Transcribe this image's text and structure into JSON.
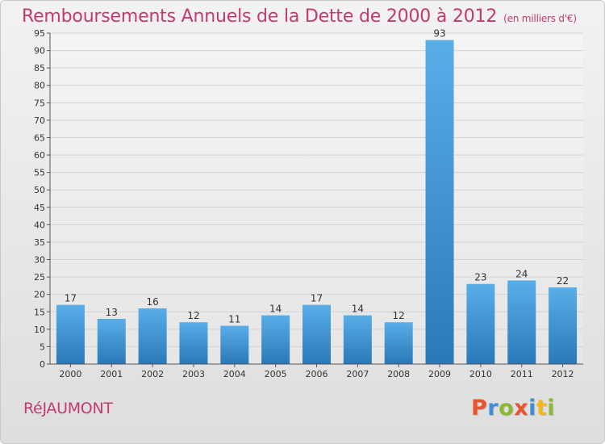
{
  "header": {
    "title": "Remboursements Annuels de la Dette de 2000 à 2012",
    "subtitle": "(en milliers d'€)"
  },
  "commune": "RéJAUMONT",
  "logo": {
    "letters": [
      {
        "char": "P",
        "color": "#e8542f"
      },
      {
        "char": "r",
        "color": "#3f8fd2"
      },
      {
        "char": "o",
        "color": "#8ab934"
      },
      {
        "char": "x",
        "color": "#e8542f"
      },
      {
        "char": "i",
        "color": "#3f8fd2"
      },
      {
        "char": "t",
        "color": "#f2b81e"
      },
      {
        "char": "i",
        "color": "#8ab934"
      }
    ]
  },
  "chart_data": {
    "type": "bar",
    "categories": [
      "2000",
      "2001",
      "2002",
      "2003",
      "2004",
      "2005",
      "2006",
      "2007",
      "2008",
      "2009",
      "2010",
      "2011",
      "2012"
    ],
    "values": [
      17,
      13,
      16,
      12,
      11,
      14,
      17,
      14,
      12,
      93,
      23,
      24,
      22
    ],
    "ylim": [
      0,
      95
    ],
    "ytick_step": 5,
    "grid": true,
    "bar_color_top": "#5aaee8",
    "bar_color_bottom": "#2a78b8"
  }
}
